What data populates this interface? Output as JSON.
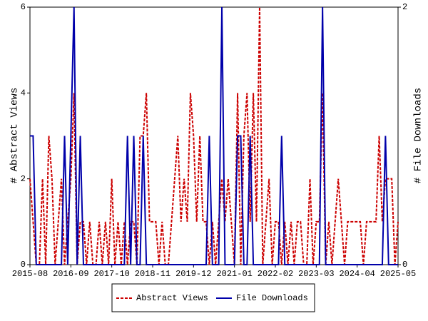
{
  "chart_data": {
    "type": "line",
    "categories": [
      "2015-08",
      null,
      null,
      null,
      null,
      null,
      null,
      null,
      null,
      null,
      null,
      null,
      null,
      "2016-09",
      null,
      null,
      null,
      null,
      null,
      null,
      null,
      null,
      null,
      null,
      null,
      null,
      "2017-10",
      null,
      null,
      null,
      null,
      null,
      null,
      null,
      null,
      null,
      null,
      null,
      null,
      "2018-11",
      null,
      null,
      null,
      null,
      null,
      null,
      null,
      null,
      null,
      null,
      null,
      null,
      "2019-12",
      null,
      null,
      null,
      null,
      null,
      null,
      null,
      null,
      null,
      null,
      null,
      null,
      "2021-01",
      null,
      null,
      null,
      null,
      null,
      null,
      null,
      null,
      null,
      null,
      null,
      null,
      "2022-02",
      null,
      null,
      null,
      null,
      null,
      null,
      null,
      null,
      null,
      null,
      null,
      null,
      "2023-03",
      null,
      null,
      null,
      null,
      null,
      null,
      null,
      null,
      null,
      null,
      null,
      null,
      "2024-04",
      null,
      null,
      null,
      null,
      null,
      null,
      null,
      null,
      null,
      null,
      null,
      null,
      "2025-05"
    ],
    "ylabel": "# Abstract Views",
    "y2label": "# File Downloads",
    "ylim": [
      0,
      6
    ],
    "yticks": [
      0,
      2,
      4,
      6
    ],
    "y2lim": [
      0,
      2
    ],
    "y2ticks": [
      0,
      2
    ],
    "legend": "bottom",
    "series": [
      {
        "name": "Abstract Views",
        "color": "#cc0000",
        "dash": true,
        "values": [
          2,
          1,
          0,
          0,
          2,
          0,
          3,
          2,
          0,
          1,
          2,
          0,
          1,
          2,
          4,
          0,
          1,
          1,
          0,
          1,
          0,
          0,
          1,
          0,
          1,
          0,
          2,
          0,
          1,
          0,
          1,
          0,
          1,
          1,
          0,
          3,
          3,
          4,
          1,
          1,
          1,
          0,
          1,
          0,
          0,
          1,
          2,
          3,
          1,
          2,
          1,
          4,
          3,
          1,
          3,
          1,
          1,
          0,
          1,
          0,
          1,
          2,
          1,
          2,
          1,
          0,
          4,
          0,
          3,
          4,
          1,
          4,
          1,
          6,
          0,
          1,
          2,
          0,
          1,
          1,
          0,
          1,
          0,
          1,
          0,
          1,
          1,
          0,
          0,
          2,
          0,
          1,
          1,
          4,
          0,
          1,
          0,
          1,
          2,
          1,
          0,
          1,
          1,
          1,
          1,
          1,
          0,
          1,
          1,
          1,
          1,
          3,
          1,
          2,
          2,
          2,
          0,
          1
        ]
      },
      {
        "name": "File Downloads",
        "color": "#0000aa",
        "axis": "y2",
        "values": [
          1,
          1,
          0,
          0,
          0,
          0,
          0,
          0,
          0,
          0,
          0,
          1,
          0,
          1,
          2,
          0,
          1,
          0,
          0,
          0,
          0,
          0,
          0,
          0,
          0,
          0,
          0,
          0,
          0,
          0,
          0,
          1,
          0,
          1,
          0,
          0,
          1,
          0,
          0,
          0,
          0,
          0,
          0,
          0,
          0,
          0,
          0,
          0,
          0,
          0,
          0,
          0,
          0,
          0,
          0,
          0,
          0,
          1,
          0,
          0,
          0,
          2,
          0,
          0,
          0,
          0,
          1,
          1,
          0,
          0,
          1,
          0,
          0,
          0,
          0,
          0,
          0,
          0,
          0,
          0,
          1,
          0,
          0,
          0,
          0,
          0,
          0,
          0,
          0,
          0,
          0,
          0,
          0,
          2,
          0,
          0,
          0,
          0,
          0,
          0,
          0,
          0,
          0,
          0,
          0,
          0,
          0,
          0,
          0,
          0,
          0,
          0,
          0,
          1,
          0,
          0,
          0,
          0
        ]
      }
    ]
  }
}
